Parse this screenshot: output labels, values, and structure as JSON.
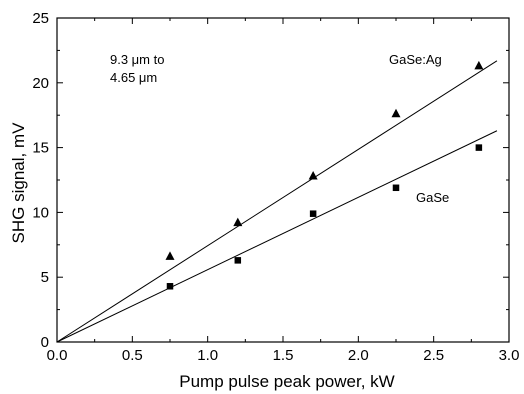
{
  "chart_data": {
    "type": "scatter",
    "xlabel": "Pump pulse peak power, kW",
    "ylabel": "SHG signal, mV",
    "xlim": [
      0,
      3.0
    ],
    "ylim": [
      0,
      25
    ],
    "xticks": [
      "0.0",
      "0.5",
      "1.0",
      "1.5",
      "2.0",
      "2.5",
      "3.0"
    ],
    "yticks": [
      "0",
      "5",
      "10",
      "15",
      "20",
      "25"
    ],
    "grid": false,
    "annotations": [
      {
        "text_line1": "9.3 μm to",
        "text_line2": "4.65 μm"
      }
    ],
    "series": [
      {
        "name": "GaSe:Ag",
        "marker": "triangle",
        "x": [
          0.75,
          1.2,
          1.7,
          2.25,
          2.8
        ],
        "y": [
          6.6,
          9.2,
          12.8,
          17.6,
          21.3
        ],
        "fit_line": {
          "x": [
            0,
            2.92
          ],
          "y": [
            0,
            21.7
          ]
        }
      },
      {
        "name": "GaSe",
        "marker": "square",
        "x": [
          0.75,
          1.2,
          1.7,
          2.25,
          2.8
        ],
        "y": [
          4.3,
          6.3,
          9.9,
          11.9,
          15.0
        ],
        "fit_line": {
          "x": [
            0,
            2.92
          ],
          "y": [
            0,
            16.3
          ]
        }
      }
    ]
  }
}
